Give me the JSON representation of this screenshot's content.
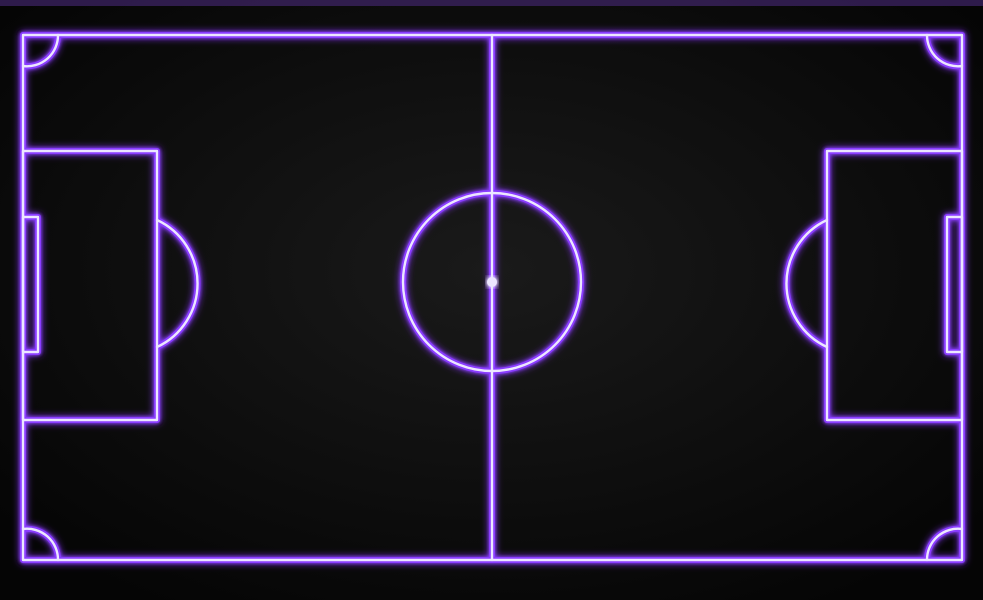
{
  "colors": {
    "background": "#050505",
    "background_center": "#1a1a1a",
    "top_edge": "#4a2a7a",
    "line_core": "#ece6ff",
    "line_glow": "#8a3dff"
  },
  "pitch": {
    "line_style": "neon-glow",
    "markings": [
      "outer-boundary",
      "halfway-line",
      "center-circle",
      "center-spot",
      "left-penalty-area",
      "left-goal-area",
      "left-penalty-arc",
      "right-penalty-area",
      "right-goal-area",
      "right-penalty-arc",
      "corner-arc-top-left",
      "corner-arc-top-right",
      "corner-arc-bottom-left",
      "corner-arc-bottom-right"
    ]
  }
}
